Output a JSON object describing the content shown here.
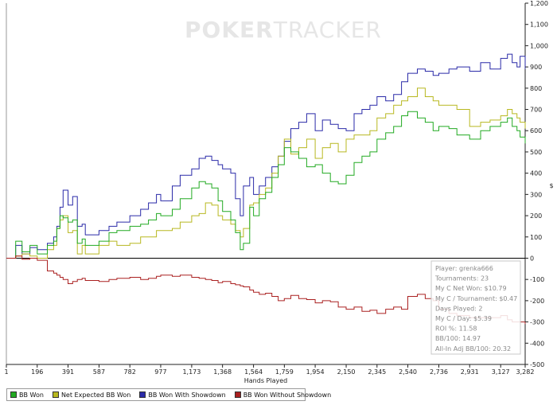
{
  "watermark": {
    "bold_part": "POKER",
    "light_part": "TRACKER"
  },
  "stats_box": [
    "Player: grenka666",
    "Tournaments: 23",
    "My C Net Won: $10.79",
    "My C / Tournament: $0.47",
    "Days Played: 2",
    "My C / Day: $5.39",
    "ROI %: 11.58",
    "BB/100: 14.97",
    "All-In Adj BB/100: 20.32"
  ],
  "legend": [
    {
      "label": "BB Won",
      "color": "#22aa22"
    },
    {
      "label": "Net Expected BB Won",
      "color": "#b8b820"
    },
    {
      "label": "BB Won With Showdown",
      "color": "#2a2aa8"
    },
    {
      "label": "BB Won Without Showdown",
      "color": "#aa2020"
    }
  ],
  "chart_data": {
    "type": "line",
    "title": "",
    "xlabel": "Hands Played",
    "ylabel": "$",
    "xlim": [
      1,
      3282
    ],
    "ylim": [
      -500,
      1200
    ],
    "x_ticks": [
      1,
      196,
      391,
      587,
      782,
      977,
      1173,
      1368,
      1564,
      1759,
      1954,
      2150,
      2345,
      2540,
      2736,
      2931,
      3127,
      3282
    ],
    "x_tick_labels": [
      "1",
      "196",
      "391",
      "587",
      "782",
      "977",
      "1,173",
      "1,368",
      "1,564",
      "1,759",
      "1,954",
      "2,150",
      "2,345",
      "2,540",
      "2,736",
      "2,931",
      "3,127",
      "3,282"
    ],
    "y_ticks": [
      -500,
      -400,
      -300,
      -200,
      -100,
      0,
      100,
      200,
      300,
      400,
      500,
      600,
      700,
      800,
      900,
      1000,
      1100,
      1200
    ],
    "y_tick_labels": [
      "-500",
      "-400",
      "-300",
      "-200",
      "-100",
      "0",
      "100",
      "200",
      "300",
      "400",
      "500",
      "600",
      "700",
      "800",
      "900",
      "1,000",
      "1,100",
      "1,200"
    ],
    "series": [
      {
        "name": "BB Won With Showdown",
        "color": "#2a2aa8",
        "x": [
          1,
          60,
          100,
          150,
          196,
          260,
          300,
          320,
          340,
          360,
          391,
          420,
          450,
          480,
          500,
          587,
          650,
          700,
          782,
          850,
          900,
          950,
          977,
          1050,
          1100,
          1173,
          1220,
          1260,
          1300,
          1340,
          1368,
          1420,
          1450,
          1480,
          1500,
          1540,
          1564,
          1600,
          1640,
          1680,
          1720,
          1759,
          1800,
          1850,
          1900,
          1954,
          2000,
          2050,
          2100,
          2150,
          2200,
          2250,
          2300,
          2345,
          2400,
          2450,
          2500,
          2540,
          2600,
          2650,
          2700,
          2736,
          2800,
          2850,
          2931,
          3000,
          3060,
          3127,
          3170,
          3200,
          3230,
          3250,
          3282
        ],
        "y": [
          0,
          60,
          20,
          50,
          40,
          70,
          100,
          150,
          240,
          320,
          250,
          290,
          150,
          160,
          110,
          130,
          150,
          170,
          200,
          230,
          260,
          300,
          270,
          340,
          390,
          420,
          470,
          480,
          460,
          440,
          420,
          400,
          280,
          200,
          340,
          380,
          300,
          340,
          380,
          430,
          480,
          550,
          610,
          640,
          680,
          600,
          650,
          630,
          610,
          600,
          680,
          700,
          720,
          760,
          740,
          770,
          830,
          870,
          890,
          880,
          860,
          870,
          890,
          900,
          880,
          920,
          890,
          940,
          960,
          920,
          900,
          950,
          890
        ]
      },
      {
        "name": "Net Expected BB Won",
        "color": "#b8b820",
        "x": [
          1,
          60,
          100,
          150,
          196,
          260,
          300,
          320,
          340,
          360,
          391,
          420,
          450,
          480,
          500,
          587,
          650,
          700,
          782,
          850,
          900,
          950,
          977,
          1050,
          1100,
          1173,
          1220,
          1260,
          1300,
          1340,
          1368,
          1420,
          1450,
          1480,
          1500,
          1540,
          1564,
          1600,
          1640,
          1680,
          1720,
          1759,
          1800,
          1850,
          1900,
          1954,
          2000,
          2050,
          2100,
          2150,
          2200,
          2250,
          2300,
          2345,
          2400,
          2450,
          2500,
          2540,
          2600,
          2650,
          2700,
          2736,
          2800,
          2850,
          2931,
          3000,
          3060,
          3127,
          3170,
          3200,
          3230,
          3250,
          3282
        ],
        "y": [
          0,
          10,
          20,
          10,
          0,
          40,
          60,
          140,
          180,
          200,
          120,
          130,
          20,
          60,
          20,
          60,
          80,
          60,
          70,
          100,
          100,
          130,
          130,
          140,
          170,
          200,
          210,
          260,
          250,
          200,
          180,
          160,
          130,
          100,
          140,
          250,
          260,
          300,
          330,
          400,
          480,
          560,
          490,
          520,
          560,
          470,
          520,
          540,
          500,
          560,
          580,
          580,
          600,
          660,
          680,
          720,
          740,
          760,
          800,
          760,
          740,
          720,
          720,
          700,
          620,
          640,
          650,
          670,
          700,
          680,
          660,
          640,
          610
        ]
      },
      {
        "name": "BB Won",
        "color": "#22aa22",
        "x": [
          1,
          60,
          100,
          150,
          196,
          260,
          300,
          320,
          340,
          360,
          391,
          420,
          450,
          480,
          500,
          587,
          650,
          700,
          782,
          850,
          900,
          950,
          977,
          1050,
          1100,
          1173,
          1220,
          1260,
          1300,
          1340,
          1368,
          1420,
          1450,
          1480,
          1500,
          1540,
          1564,
          1600,
          1640,
          1680,
          1720,
          1759,
          1800,
          1850,
          1900,
          1954,
          2000,
          2050,
          2100,
          2150,
          2200,
          2250,
          2300,
          2345,
          2400,
          2450,
          2500,
          2540,
          2600,
          2650,
          2700,
          2736,
          2800,
          2850,
          2931,
          3000,
          3060,
          3127,
          3170,
          3200,
          3230,
          3250,
          3282
        ],
        "y": [
          0,
          80,
          30,
          60,
          20,
          60,
          80,
          140,
          200,
          190,
          170,
          180,
          70,
          90,
          60,
          80,
          120,
          130,
          150,
          160,
          180,
          210,
          200,
          230,
          280,
          330,
          360,
          350,
          330,
          270,
          220,
          180,
          120,
          40,
          70,
          240,
          200,
          280,
          310,
          380,
          440,
          520,
          500,
          470,
          430,
          440,
          400,
          360,
          350,
          390,
          450,
          480,
          500,
          560,
          590,
          620,
          670,
          690,
          660,
          640,
          600,
          620,
          610,
          580,
          560,
          600,
          620,
          640,
          660,
          620,
          600,
          570,
          540
        ]
      },
      {
        "name": "BB Won Without Showdown",
        "color": "#aa2020",
        "x": [
          1,
          60,
          100,
          150,
          196,
          260,
          300,
          320,
          340,
          360,
          391,
          420,
          450,
          480,
          500,
          587,
          650,
          700,
          782,
          850,
          900,
          950,
          977,
          1050,
          1100,
          1173,
          1220,
          1260,
          1300,
          1340,
          1368,
          1420,
          1450,
          1480,
          1500,
          1540,
          1564,
          1600,
          1640,
          1680,
          1720,
          1759,
          1800,
          1850,
          1900,
          1954,
          2000,
          2050,
          2100,
          2150,
          2200,
          2250,
          2300,
          2345,
          2400,
          2450,
          2500,
          2540,
          2600,
          2650,
          2700,
          2736,
          2800,
          2850,
          2931,
          3000,
          3060,
          3127,
          3170,
          3200,
          3230,
          3250,
          3282
        ],
        "y": [
          0,
          10,
          -5,
          0,
          -10,
          -60,
          -70,
          -80,
          -90,
          -100,
          -120,
          -110,
          -100,
          -95,
          -105,
          -110,
          -100,
          -95,
          -90,
          -100,
          -95,
          -85,
          -80,
          -85,
          -80,
          -90,
          -95,
          -100,
          -105,
          -115,
          -110,
          -120,
          -125,
          -130,
          -135,
          -150,
          -160,
          -170,
          -165,
          -180,
          -200,
          -190,
          -175,
          -190,
          -195,
          -210,
          -200,
          -205,
          -230,
          -240,
          -230,
          -250,
          -245,
          -260,
          -240,
          -230,
          -240,
          -180,
          -170,
          -190,
          -200,
          -240,
          -260,
          -270,
          -280,
          -280,
          -280,
          -270,
          -290,
          -300,
          -300,
          -300,
          -310
        ]
      }
    ]
  }
}
